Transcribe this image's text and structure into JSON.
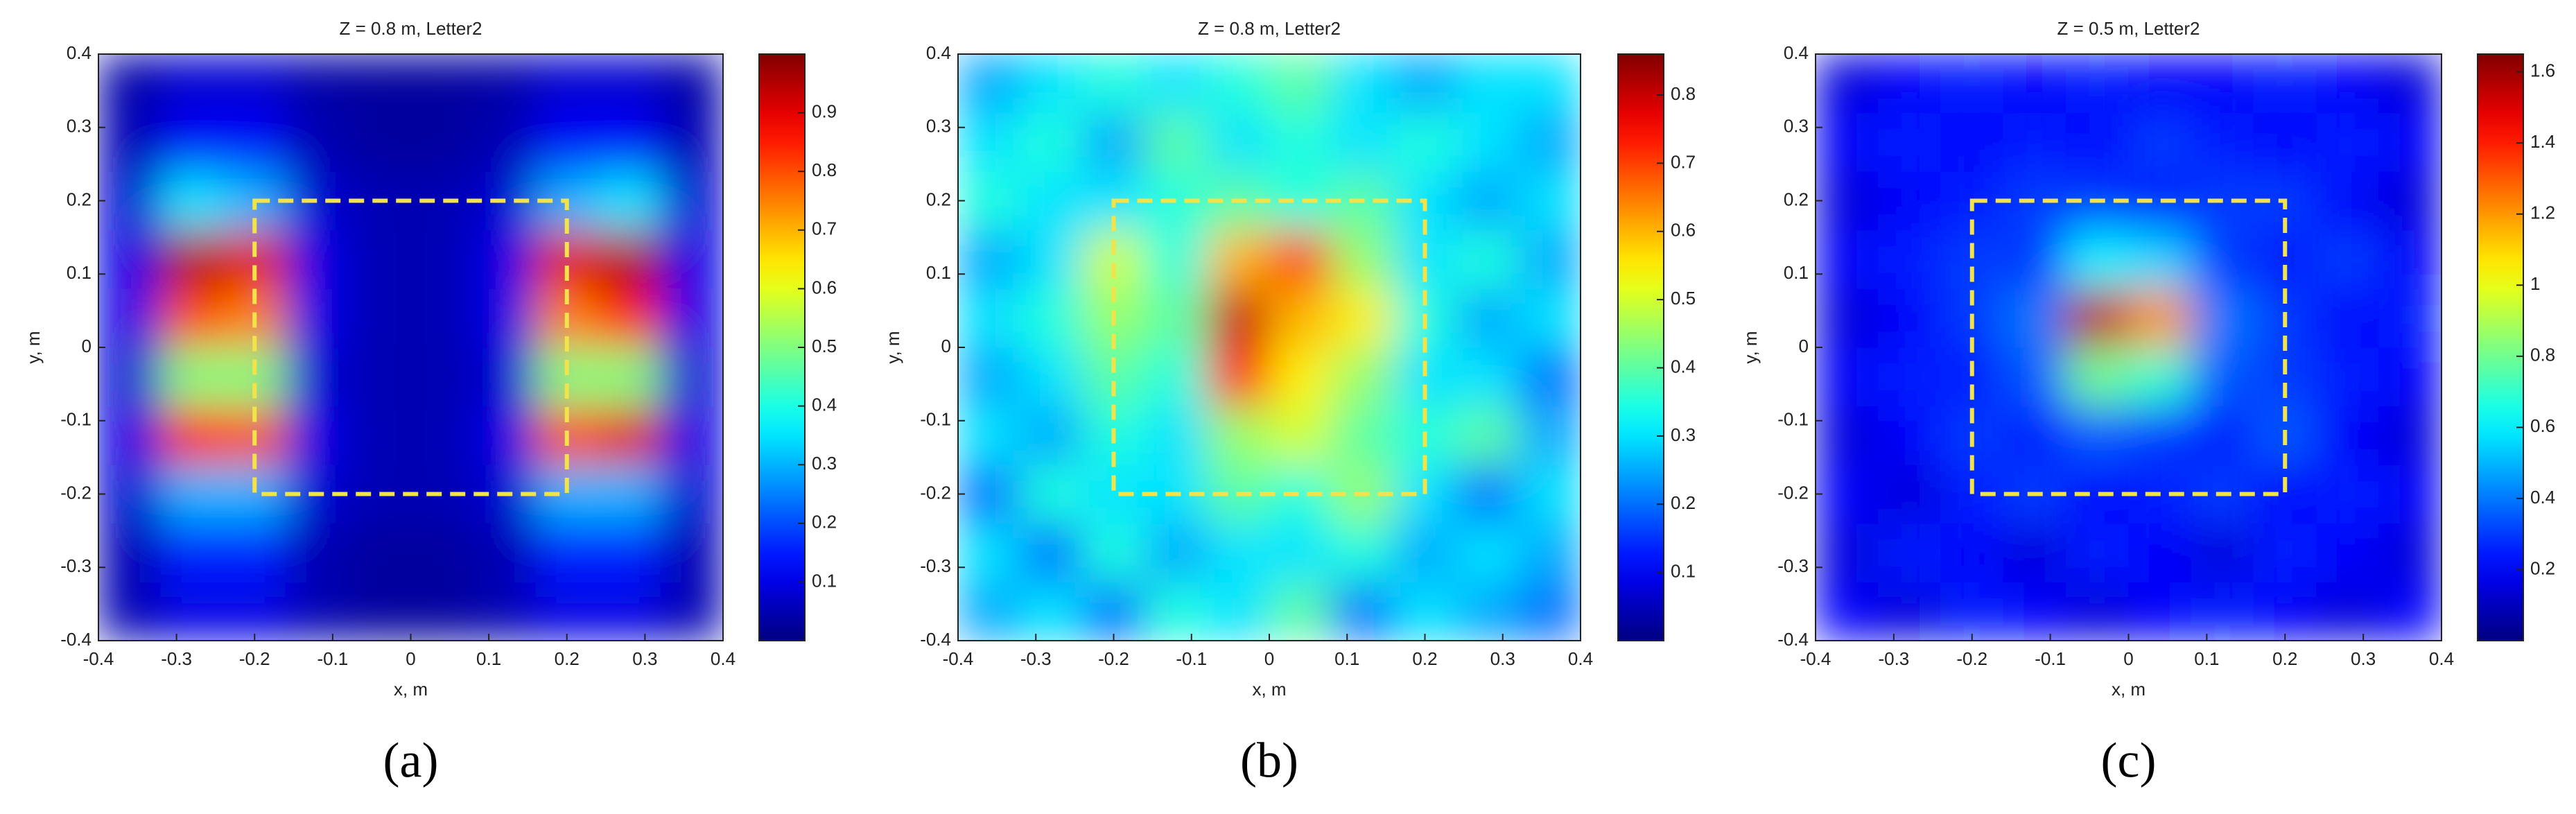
{
  "chart_data": [
    {
      "type": "heatmap",
      "title": "Z = 0.8 m, Letter2",
      "x_label": "x, m",
      "y_label": "y, m",
      "panel_label": "(a)",
      "colormap": "jet",
      "clim": [
        0,
        1
      ],
      "xlim": [
        -0.4,
        0.4
      ],
      "ylim": [
        -0.4,
        0.4
      ],
      "xticks": [
        -0.4,
        -0.3,
        -0.2,
        -0.1,
        0,
        0.1,
        0.2,
        0.3,
        0.4
      ],
      "yticks": [
        -0.4,
        -0.3,
        -0.2,
        -0.1,
        0,
        0.1,
        0.2,
        0.3,
        0.4
      ],
      "cticks": [
        0.1,
        0.2,
        0.3,
        0.4,
        0.5,
        0.6,
        0.7,
        0.8,
        0.9
      ],
      "annotation_box": {
        "x": [
          -0.2,
          0.2
        ],
        "y": [
          -0.2,
          0.2
        ],
        "color": "#f2e34a"
      },
      "x": [
        -0.36,
        -0.28,
        -0.2,
        -0.12,
        -0.04,
        0.04,
        0.12,
        0.2,
        0.28,
        0.36
      ],
      "y": [
        -0.36,
        -0.28,
        -0.2,
        -0.12,
        -0.04,
        0.04,
        0.12,
        0.2,
        0.28,
        0.36
      ],
      "z": [
        [
          0.05,
          0.1,
          0.1,
          0.05,
          0.03,
          0.03,
          0.05,
          0.1,
          0.1,
          0.05
        ],
        [
          0.05,
          0.15,
          0.15,
          0.05,
          0.03,
          0.03,
          0.05,
          0.15,
          0.15,
          0.05
        ],
        [
          0.08,
          0.3,
          0.3,
          0.08,
          0.05,
          0.05,
          0.08,
          0.3,
          0.3,
          0.08
        ],
        [
          0.1,
          0.85,
          0.8,
          0.1,
          0.05,
          0.05,
          0.1,
          0.8,
          0.9,
          0.1
        ],
        [
          0.08,
          0.5,
          0.5,
          0.08,
          0.05,
          0.05,
          0.08,
          0.5,
          0.5,
          0.08
        ],
        [
          0.1,
          0.8,
          0.75,
          0.1,
          0.05,
          0.05,
          0.1,
          0.75,
          0.85,
          0.1
        ],
        [
          0.1,
          0.95,
          0.9,
          0.1,
          0.05,
          0.05,
          0.1,
          0.9,
          0.95,
          0.1
        ],
        [
          0.08,
          0.35,
          0.3,
          0.08,
          0.05,
          0.05,
          0.08,
          0.3,
          0.35,
          0.08
        ],
        [
          0.05,
          0.12,
          0.12,
          0.05,
          0.03,
          0.03,
          0.05,
          0.12,
          0.12,
          0.05
        ],
        [
          0.04,
          0.08,
          0.08,
          0.04,
          0.03,
          0.03,
          0.04,
          0.08,
          0.08,
          0.04
        ]
      ]
    },
    {
      "type": "heatmap",
      "title": "Z = 0.8 m, Letter2",
      "x_label": "x, m",
      "y_label": "y, m",
      "panel_label": "(b)",
      "colormap": "jet",
      "clim": [
        0,
        0.86
      ],
      "xlim": [
        -0.4,
        0.4
      ],
      "ylim": [
        -0.4,
        0.4
      ],
      "xticks": [
        -0.4,
        -0.3,
        -0.2,
        -0.1,
        0,
        0.1,
        0.2,
        0.3,
        0.4
      ],
      "yticks": [
        -0.4,
        -0.3,
        -0.2,
        -0.1,
        0,
        0.1,
        0.2,
        0.3,
        0.4
      ],
      "cticks": [
        0.1,
        0.2,
        0.3,
        0.4,
        0.5,
        0.6,
        0.7,
        0.8
      ],
      "annotation_box": {
        "x": [
          -0.2,
          0.2
        ],
        "y": [
          -0.2,
          0.2
        ],
        "color": "#f2e34a"
      },
      "x": [
        -0.36,
        -0.28,
        -0.2,
        -0.12,
        -0.04,
        0.04,
        0.12,
        0.2,
        0.28,
        0.36
      ],
      "y": [
        -0.36,
        -0.28,
        -0.2,
        -0.12,
        -0.04,
        0.04,
        0.12,
        0.2,
        0.28,
        0.36
      ],
      "z": [
        [
          0.25,
          0.3,
          0.2,
          0.35,
          0.3,
          0.4,
          0.2,
          0.3,
          0.25,
          0.2
        ],
        [
          0.3,
          0.2,
          0.35,
          0.25,
          0.3,
          0.3,
          0.35,
          0.25,
          0.3,
          0.25
        ],
        [
          0.2,
          0.35,
          0.3,
          0.3,
          0.4,
          0.35,
          0.45,
          0.3,
          0.2,
          0.3
        ],
        [
          0.3,
          0.25,
          0.35,
          0.3,
          0.45,
          0.5,
          0.4,
          0.35,
          0.4,
          0.25
        ],
        [
          0.25,
          0.3,
          0.4,
          0.35,
          0.75,
          0.55,
          0.45,
          0.3,
          0.3,
          0.2
        ],
        [
          0.3,
          0.35,
          0.45,
          0.4,
          0.8,
          0.6,
          0.55,
          0.35,
          0.25,
          0.3
        ],
        [
          0.25,
          0.3,
          0.5,
          0.35,
          0.6,
          0.7,
          0.45,
          0.3,
          0.35,
          0.25
        ],
        [
          0.35,
          0.3,
          0.3,
          0.35,
          0.4,
          0.35,
          0.4,
          0.3,
          0.25,
          0.3
        ],
        [
          0.3,
          0.35,
          0.25,
          0.4,
          0.3,
          0.35,
          0.3,
          0.35,
          0.3,
          0.25
        ],
        [
          0.25,
          0.3,
          0.35,
          0.3,
          0.35,
          0.4,
          0.3,
          0.25,
          0.3,
          0.3
        ]
      ]
    },
    {
      "type": "heatmap",
      "title": "Z = 0.5 m, Letter2",
      "x_label": "x, m",
      "y_label": "y, m",
      "panel_label": "(c)",
      "colormap": "jet",
      "clim": [
        0,
        1.65
      ],
      "xlim": [
        -0.4,
        0.4
      ],
      "ylim": [
        -0.4,
        0.4
      ],
      "xticks": [
        -0.4,
        -0.3,
        -0.2,
        -0.1,
        0,
        0.1,
        0.2,
        0.3,
        0.4
      ],
      "yticks": [
        -0.4,
        -0.3,
        -0.2,
        -0.1,
        0,
        0.1,
        0.2,
        0.3,
        0.4
      ],
      "cticks": [
        0.2,
        0.4,
        0.6,
        0.8,
        1,
        1.2,
        1.4,
        1.6
      ],
      "annotation_box": {
        "x": [
          -0.2,
          0.2
        ],
        "y": [
          -0.2,
          0.2
        ],
        "color": "#f2e34a"
      },
      "x": [
        -0.36,
        -0.28,
        -0.2,
        -0.12,
        -0.04,
        0.04,
        0.12,
        0.2,
        0.28,
        0.36
      ],
      "y": [
        -0.36,
        -0.28,
        -0.2,
        -0.12,
        -0.04,
        0.04,
        0.12,
        0.2,
        0.28,
        0.36
      ],
      "z": [
        [
          0.2,
          0.15,
          0.25,
          0.2,
          0.15,
          0.2,
          0.25,
          0.2,
          0.15,
          0.2
        ],
        [
          0.15,
          0.25,
          0.2,
          0.15,
          0.25,
          0.2,
          0.15,
          0.25,
          0.2,
          0.15
        ],
        [
          0.2,
          0.15,
          0.25,
          0.3,
          0.2,
          0.25,
          0.3,
          0.2,
          0.25,
          0.2
        ],
        [
          0.15,
          0.2,
          0.3,
          0.25,
          0.35,
          0.3,
          0.25,
          0.35,
          0.2,
          0.15
        ],
        [
          0.2,
          0.25,
          0.25,
          0.35,
          0.8,
          0.7,
          0.35,
          0.3,
          0.25,
          0.2
        ],
        [
          0.15,
          0.2,
          0.3,
          0.4,
          1.55,
          1.2,
          0.4,
          0.3,
          0.2,
          0.25
        ],
        [
          0.2,
          0.25,
          0.3,
          0.3,
          0.6,
          0.55,
          0.3,
          0.25,
          0.3,
          0.2
        ],
        [
          0.15,
          0.2,
          0.25,
          0.3,
          0.3,
          0.25,
          0.3,
          0.3,
          0.2,
          0.15
        ],
        [
          0.2,
          0.25,
          0.2,
          0.25,
          0.2,
          0.3,
          0.25,
          0.2,
          0.25,
          0.2
        ],
        [
          0.15,
          0.2,
          0.25,
          0.2,
          0.25,
          0.2,
          0.2,
          0.25,
          0.2,
          0.15
        ]
      ]
    }
  ]
}
